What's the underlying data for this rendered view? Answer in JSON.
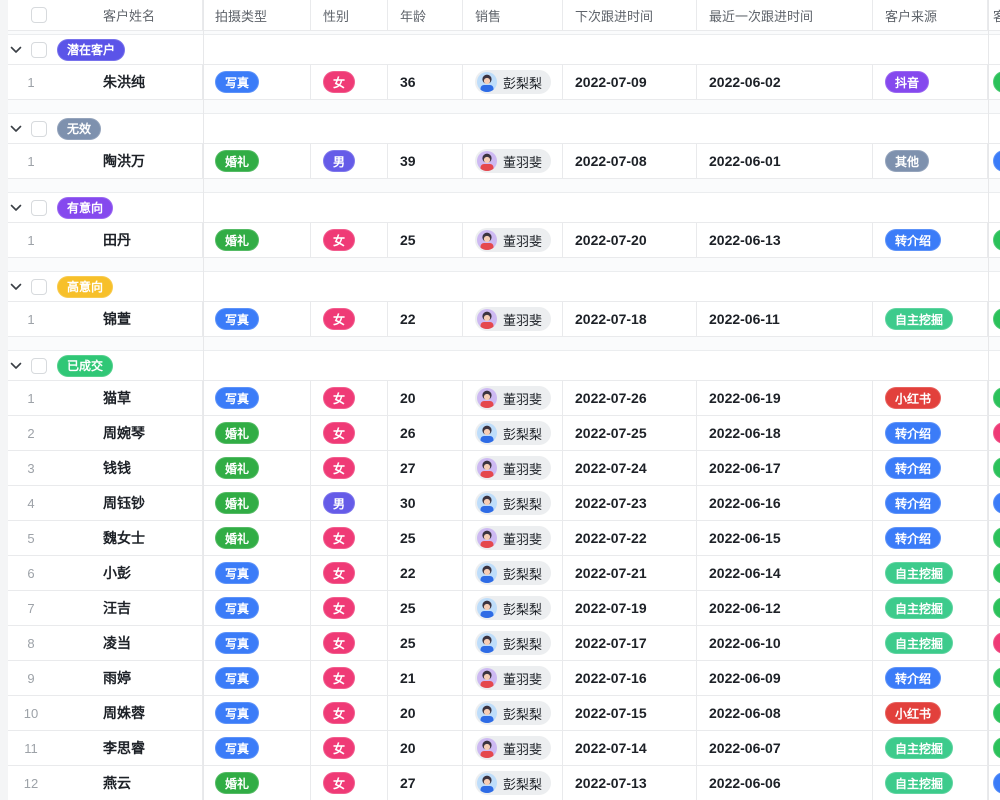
{
  "table": {
    "columns": [
      {
        "id": "name",
        "label": "客户姓名"
      },
      {
        "id": "type",
        "label": "拍摄类型"
      },
      {
        "id": "gender",
        "label": "性别"
      },
      {
        "id": "age",
        "label": "年龄"
      },
      {
        "id": "sales",
        "label": "销售"
      },
      {
        "id": "next",
        "label": "下次跟进时间"
      },
      {
        "id": "last",
        "label": "最近一次跟进时间"
      },
      {
        "id": "source",
        "label": "客户来源"
      },
      {
        "id": "extra",
        "label": "客"
      }
    ],
    "colors": {
      "status": {
        "潜在客户": "#5B54E8",
        "无效": "#7E91AE",
        "有意向": "#8549EE",
        "高意向": "#F7C02A",
        "已成交": "#30C776"
      },
      "badges": {
        "写真": "#3B7CF8",
        "婚礼": "#31AD45",
        "女": "#EF3A76",
        "男": "#655BE8",
        "抖音": "#8549EE",
        "其他": "#7E91AE",
        "转介绍": "#3B7CF8",
        "自主挖掘": "#3DCB8C",
        "小红书": "#E2403C"
      },
      "partial": {
        "green": "#2BC15A",
        "pink": "#EF3A76",
        "blue": "#3B7CF8"
      }
    },
    "people": {
      "彭梨梨": {
        "bg": "#BEDDFA",
        "shirt": "#2E6BE5"
      },
      "董羽斐": {
        "bg": "#CDB9F2",
        "shirt": "#E5484D"
      }
    },
    "groups": [
      {
        "label": "潜在客户",
        "rows": [
          {
            "num": "1",
            "name": "朱洪纯",
            "type": "写真",
            "gender": "女",
            "age": "36",
            "sales": "彭梨梨",
            "next": "2022-07-09",
            "last": "2022-06-02",
            "source": "抖音",
            "extra": "green"
          }
        ]
      },
      {
        "label": "无效",
        "rows": [
          {
            "num": "1",
            "name": "陶洪万",
            "type": "婚礼",
            "gender": "男",
            "age": "39",
            "sales": "董羽斐",
            "next": "2022-07-08",
            "last": "2022-06-01",
            "source": "其他",
            "extra": "blue"
          }
        ]
      },
      {
        "label": "有意向",
        "rows": [
          {
            "num": "1",
            "name": "田丹",
            "type": "婚礼",
            "gender": "女",
            "age": "25",
            "sales": "董羽斐",
            "next": "2022-07-20",
            "last": "2022-06-13",
            "source": "转介绍",
            "extra": "green"
          }
        ]
      },
      {
        "label": "高意向",
        "rows": [
          {
            "num": "1",
            "name": "锦萱",
            "type": "写真",
            "gender": "女",
            "age": "22",
            "sales": "董羽斐",
            "next": "2022-07-18",
            "last": "2022-06-11",
            "source": "自主挖掘",
            "extra": "green"
          }
        ]
      },
      {
        "label": "已成交",
        "rows": [
          {
            "num": "1",
            "name": "猫草",
            "type": "写真",
            "gender": "女",
            "age": "20",
            "sales": "董羽斐",
            "next": "2022-07-26",
            "last": "2022-06-19",
            "source": "小红书",
            "extra": "green"
          },
          {
            "num": "2",
            "name": "周婉琴",
            "type": "婚礼",
            "gender": "女",
            "age": "26",
            "sales": "彭梨梨",
            "next": "2022-07-25",
            "last": "2022-06-18",
            "source": "转介绍",
            "extra": "pink"
          },
          {
            "num": "3",
            "name": "钱钱",
            "type": "婚礼",
            "gender": "女",
            "age": "27",
            "sales": "董羽斐",
            "next": "2022-07-24",
            "last": "2022-06-17",
            "source": "转介绍",
            "extra": "green"
          },
          {
            "num": "4",
            "name": "周钰钞",
            "type": "婚礼",
            "gender": "男",
            "age": "30",
            "sales": "彭梨梨",
            "next": "2022-07-23",
            "last": "2022-06-16",
            "source": "转介绍",
            "extra": "blue"
          },
          {
            "num": "5",
            "name": "魏女士",
            "type": "婚礼",
            "gender": "女",
            "age": "25",
            "sales": "董羽斐",
            "next": "2022-07-22",
            "last": "2022-06-15",
            "source": "转介绍",
            "extra": "green"
          },
          {
            "num": "6",
            "name": "小彭",
            "type": "写真",
            "gender": "女",
            "age": "22",
            "sales": "彭梨梨",
            "next": "2022-07-21",
            "last": "2022-06-14",
            "source": "自主挖掘",
            "extra": "green"
          },
          {
            "num": "7",
            "name": "汪吉",
            "type": "写真",
            "gender": "女",
            "age": "25",
            "sales": "彭梨梨",
            "next": "2022-07-19",
            "last": "2022-06-12",
            "source": "自主挖掘",
            "extra": "green"
          },
          {
            "num": "8",
            "name": "凌当",
            "type": "写真",
            "gender": "女",
            "age": "25",
            "sales": "彭梨梨",
            "next": "2022-07-17",
            "last": "2022-06-10",
            "source": "自主挖掘",
            "extra": "pink"
          },
          {
            "num": "9",
            "name": "雨婷",
            "type": "写真",
            "gender": "女",
            "age": "21",
            "sales": "董羽斐",
            "next": "2022-07-16",
            "last": "2022-06-09",
            "source": "转介绍",
            "extra": "green"
          },
          {
            "num": "10",
            "name": "周姝蓉",
            "type": "写真",
            "gender": "女",
            "age": "20",
            "sales": "彭梨梨",
            "next": "2022-07-15",
            "last": "2022-06-08",
            "source": "小红书",
            "extra": "green"
          },
          {
            "num": "11",
            "name": "李思睿",
            "type": "写真",
            "gender": "女",
            "age": "20",
            "sales": "董羽斐",
            "next": "2022-07-14",
            "last": "2022-06-07",
            "source": "自主挖掘",
            "extra": "green"
          },
          {
            "num": "12",
            "name": "燕云",
            "type": "婚礼",
            "gender": "女",
            "age": "27",
            "sales": "彭梨梨",
            "next": "2022-07-13",
            "last": "2022-06-06",
            "source": "自主挖掘",
            "extra": "blue"
          }
        ]
      }
    ]
  }
}
